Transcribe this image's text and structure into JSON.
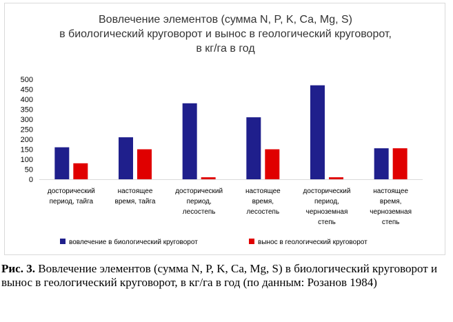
{
  "chart_data": {
    "type": "bar",
    "title_lines": [
      "Вовлечение элементов (сумма N, P, K, Ca, Mg, S)",
      "в биологический круговорот и вынос в геологический круговорот,",
      "в кг/га в год"
    ],
    "categories": [
      [
        "досторический",
        "период, тайга"
      ],
      [
        "настоящее",
        "время, тайга"
      ],
      [
        "досторический",
        "период,",
        "лесостепь"
      ],
      [
        "настоящее",
        "время,",
        "лесостепь"
      ],
      [
        "досторический",
        "период,",
        "черноземная",
        "степь"
      ],
      [
        "настоящее",
        "время,",
        "черноземная",
        "степь"
      ]
    ],
    "series": [
      {
        "name": "вовлечение в биологический круговорот",
        "color": "#1f1f8c",
        "values": [
          160,
          210,
          380,
          310,
          470,
          155
        ]
      },
      {
        "name": "вынос в геологический круговорот",
        "color": "#e00000",
        "values": [
          80,
          150,
          10,
          150,
          10,
          155
        ]
      }
    ],
    "ylim": [
      0,
      500
    ],
    "yticks": [
      0,
      50,
      100,
      150,
      200,
      250,
      300,
      350,
      400,
      450,
      500
    ],
    "grid": false,
    "legend_position": "bottom"
  },
  "caption": {
    "label": "Рис. 3.",
    "text": " Вовлечение элементов (сумма N, P, K, Ca, Mg, S) в биологический круговорот и вынос в геологический круговорот, в кг/га в год (по данным: Розанов 1984)"
  }
}
